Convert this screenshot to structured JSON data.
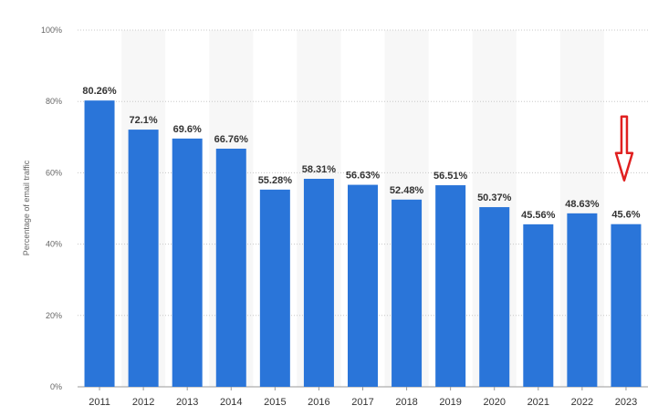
{
  "chart_data": {
    "type": "bar",
    "categories": [
      "2011",
      "2012",
      "2013",
      "2014",
      "2015",
      "2016",
      "2017",
      "2018",
      "2019",
      "2020",
      "2021",
      "2022",
      "2023"
    ],
    "values": [
      80.26,
      72.1,
      69.6,
      66.76,
      55.28,
      58.31,
      56.63,
      52.48,
      56.51,
      50.37,
      45.56,
      48.63,
      45.6
    ],
    "data_labels": [
      "80.26%",
      "72.1%",
      "69.6%",
      "66.76%",
      "55.28%",
      "58.31%",
      "56.63%",
      "52.48%",
      "56.51%",
      "50.37%",
      "45.56%",
      "48.63%",
      "45.6%"
    ],
    "ylabel": "Percentage of email traffic",
    "yticks": [
      "0%",
      "20%",
      "40%",
      "60%",
      "80%",
      "100%"
    ],
    "ylim": [
      0,
      100
    ],
    "grid": true,
    "bar_color": "#2a75d9",
    "annotation": {
      "type": "arrow",
      "color": "#e02020",
      "points_to": "2023"
    }
  }
}
